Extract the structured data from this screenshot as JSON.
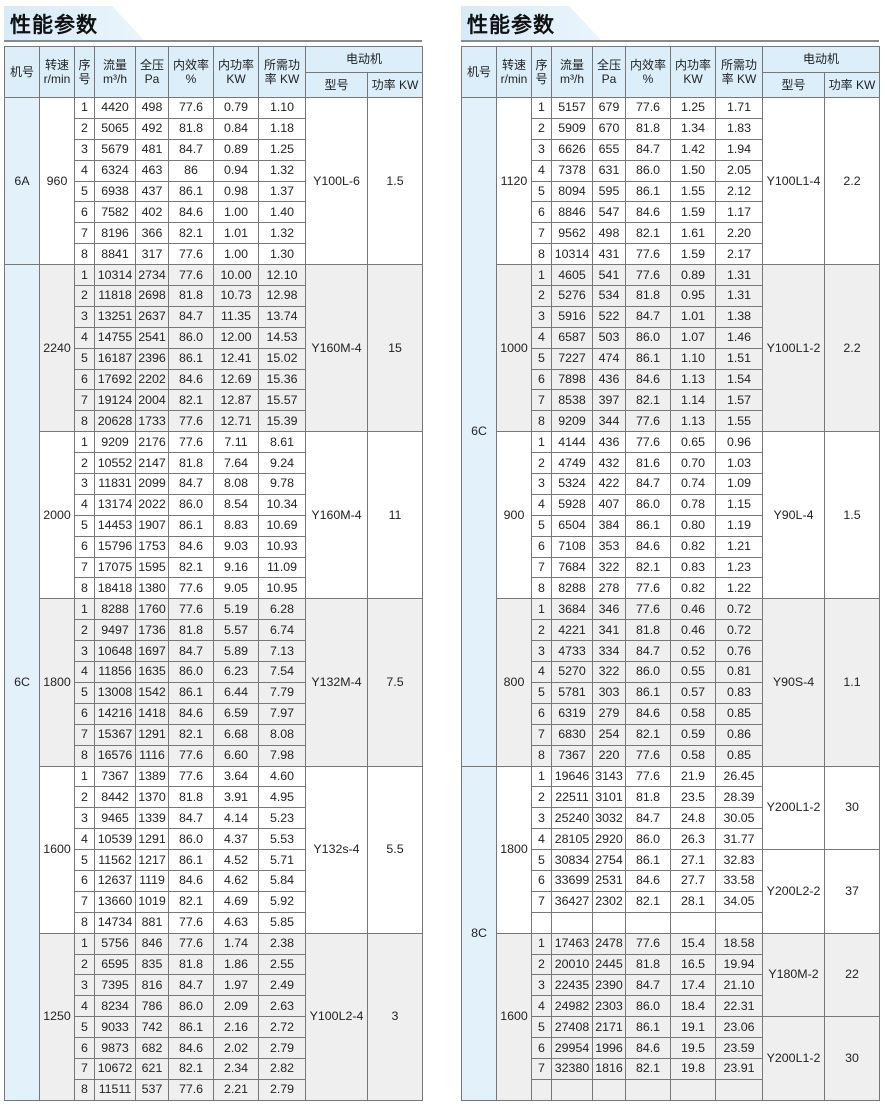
{
  "title": "性能参数",
  "headers": {
    "machine": "机号",
    "speed": "转速",
    "speed_unit": "r/min",
    "seq": "序号",
    "flow": "流量",
    "flow_unit": "m³/h",
    "pressure": "全压",
    "pressure_unit": "Pa",
    "eff": "内效率",
    "eff_unit": "%",
    "inpower": "内功率",
    "inpower_unit": "KW",
    "reqpower": "所需功",
    "reqpower_unit": "率 KW",
    "motor": "电动机",
    "motor_type": "型号",
    "motor_power": "功率 KW"
  },
  "colors": {
    "header_bg": "#dbeefa",
    "machine_col_bg": "#e3f1fb",
    "shade_bg": "#efefef"
  },
  "tables": [
    {
      "machines": [
        {
          "name": "6A",
          "groups": 1
        },
        {
          "name": "6C",
          "groups": 5
        }
      ],
      "groups": [
        {
          "speed": "960",
          "motors": [
            {
              "type": "Y100L-6",
              "power": "1.5",
              "span": 8
            }
          ],
          "rows": [
            [
              "1",
              "4420",
              "498",
              "77.6",
              "0.79",
              "1.10"
            ],
            [
              "2",
              "5065",
              "492",
              "81.8",
              "0.84",
              "1.18"
            ],
            [
              "3",
              "5679",
              "481",
              "84.7",
              "0.89",
              "1.25"
            ],
            [
              "4",
              "6324",
              "463",
              "86",
              "0.94",
              "1.32"
            ],
            [
              "5",
              "6938",
              "437",
              "86.1",
              "0.98",
              "1.37"
            ],
            [
              "6",
              "7582",
              "402",
              "84.6",
              "1.00",
              "1.40"
            ],
            [
              "7",
              "8196",
              "366",
              "82.1",
              "1.01",
              "1.32"
            ],
            [
              "8",
              "8841",
              "317",
              "77.6",
              "1.00",
              "1.30"
            ]
          ]
        },
        {
          "speed": "2240",
          "motors": [
            {
              "type": "Y160M-4",
              "power": "15",
              "span": 8
            }
          ],
          "rows": [
            [
              "1",
              "10314",
              "2734",
              "77.6",
              "10.00",
              "12.10"
            ],
            [
              "2",
              "11818",
              "2698",
              "81.8",
              "10.73",
              "12.98"
            ],
            [
              "3",
              "13251",
              "2637",
              "84.7",
              "11.35",
              "13.74"
            ],
            [
              "4",
              "14755",
              "2541",
              "86.0",
              "12.00",
              "14.53"
            ],
            [
              "5",
              "16187",
              "2396",
              "86.1",
              "12.41",
              "15.02"
            ],
            [
              "6",
              "17692",
              "2202",
              "84.6",
              "12.69",
              "15.36"
            ],
            [
              "7",
              "19124",
              "2004",
              "82.1",
              "12.87",
              "15.57"
            ],
            [
              "8",
              "20628",
              "1733",
              "77.6",
              "12.71",
              "15.39"
            ]
          ]
        },
        {
          "speed": "2000",
          "motors": [
            {
              "type": "Y160M-4",
              "power": "11",
              "span": 8
            }
          ],
          "rows": [
            [
              "1",
              "9209",
              "2176",
              "77.6",
              "7.11",
              "8.61"
            ],
            [
              "2",
              "10552",
              "2147",
              "81.8",
              "7.64",
              "9.24"
            ],
            [
              "3",
              "11831",
              "2099",
              "84.7",
              "8.08",
              "9.78"
            ],
            [
              "4",
              "13174",
              "2022",
              "86.0",
              "8.54",
              "10.34"
            ],
            [
              "5",
              "14453",
              "1907",
              "86.1",
              "8.83",
              "10.69"
            ],
            [
              "6",
              "15796",
              "1753",
              "84.6",
              "9.03",
              "10.93"
            ],
            [
              "7",
              "17075",
              "1595",
              "82.1",
              "9.16",
              "11.09"
            ],
            [
              "8",
              "18418",
              "1380",
              "77.6",
              "9.05",
              "10.95"
            ]
          ]
        },
        {
          "speed": "1800",
          "motors": [
            {
              "type": "Y132M-4",
              "power": "7.5",
              "span": 8
            }
          ],
          "rows": [
            [
              "1",
              "8288",
              "1760",
              "77.6",
              "5.19",
              "6.28"
            ],
            [
              "2",
              "9497",
              "1736",
              "81.8",
              "5.57",
              "6.74"
            ],
            [
              "3",
              "10648",
              "1697",
              "84.7",
              "5.89",
              "7.13"
            ],
            [
              "4",
              "11856",
              "1635",
              "86.0",
              "6.23",
              "7.54"
            ],
            [
              "5",
              "13008",
              "1542",
              "86.1",
              "6.44",
              "7.79"
            ],
            [
              "6",
              "14216",
              "1418",
              "84.6",
              "6.59",
              "7.97"
            ],
            [
              "7",
              "15367",
              "1291",
              "82.1",
              "6.68",
              "8.08"
            ],
            [
              "8",
              "16576",
              "1116",
              "77.6",
              "6.60",
              "7.98"
            ]
          ]
        },
        {
          "speed": "1600",
          "motors": [
            {
              "type": "Y132s-4",
              "power": "5.5",
              "span": 8
            }
          ],
          "rows": [
            [
              "1",
              "7367",
              "1389",
              "77.6",
              "3.64",
              "4.60"
            ],
            [
              "2",
              "8442",
              "1370",
              "81.8",
              "3.91",
              "4.95"
            ],
            [
              "3",
              "9465",
              "1339",
              "84.7",
              "4.14",
              "5.23"
            ],
            [
              "4",
              "10539",
              "1291",
              "86.0",
              "4.37",
              "5.53"
            ],
            [
              "5",
              "11562",
              "1217",
              "86.1",
              "4.52",
              "5.71"
            ],
            [
              "6",
              "12637",
              "1119",
              "84.6",
              "4.62",
              "5.84"
            ],
            [
              "7",
              "13660",
              "1019",
              "82.1",
              "4.69",
              "5.92"
            ],
            [
              "8",
              "14734",
              "881",
              "77.6",
              "4.63",
              "5.85"
            ]
          ]
        },
        {
          "speed": "1250",
          "motors": [
            {
              "type": "Y100L2-4",
              "power": "3",
              "span": 8
            }
          ],
          "rows": [
            [
              "1",
              "5756",
              "846",
              "77.6",
              "1.74",
              "2.38"
            ],
            [
              "2",
              "6595",
              "835",
              "81.8",
              "1.86",
              "2.55"
            ],
            [
              "3",
              "7395",
              "816",
              "84.7",
              "1.97",
              "2.49"
            ],
            [
              "4",
              "8234",
              "786",
              "86.0",
              "2.09",
              "2.63"
            ],
            [
              "5",
              "9033",
              "742",
              "86.1",
              "2.16",
              "2.72"
            ],
            [
              "6",
              "9873",
              "682",
              "84.6",
              "2.02",
              "2.79"
            ],
            [
              "7",
              "10672",
              "621",
              "82.1",
              "2.34",
              "2.82"
            ],
            [
              "8",
              "11511",
              "537",
              "77.6",
              "2.21",
              "2.79"
            ]
          ]
        }
      ]
    },
    {
      "machines": [
        {
          "name": "6C",
          "groups": 4
        },
        {
          "name": "8C",
          "groups": 2
        }
      ],
      "groups": [
        {
          "speed": "1120",
          "motors": [
            {
              "type": "Y100L1-4",
              "power": "2.2",
              "span": 8
            }
          ],
          "rows": [
            [
              "1",
              "5157",
              "679",
              "77.6",
              "1.25",
              "1.71"
            ],
            [
              "2",
              "5909",
              "670",
              "81.8",
              "1.34",
              "1.83"
            ],
            [
              "3",
              "6626",
              "655",
              "84.7",
              "1.42",
              "1.94"
            ],
            [
              "4",
              "7378",
              "631",
              "86.0",
              "1.50",
              "2.05"
            ],
            [
              "5",
              "8094",
              "595",
              "86.1",
              "1.55",
              "2.12"
            ],
            [
              "6",
              "8846",
              "547",
              "84.6",
              "1.59",
              "1.17"
            ],
            [
              "7",
              "9562",
              "498",
              "82.1",
              "1.61",
              "2.20"
            ],
            [
              "8",
              "10314",
              "431",
              "77.6",
              "1.59",
              "2.17"
            ]
          ]
        },
        {
          "speed": "1000",
          "motors": [
            {
              "type": "Y100L1-2",
              "power": "2.2",
              "span": 8
            }
          ],
          "rows": [
            [
              "1",
              "4605",
              "541",
              "77.6",
              "0.89",
              "1.31"
            ],
            [
              "2",
              "5276",
              "534",
              "81.8",
              "0.95",
              "1.31"
            ],
            [
              "3",
              "5916",
              "522",
              "84.7",
              "1.01",
              "1.38"
            ],
            [
              "4",
              "6587",
              "503",
              "86.0",
              "1.07",
              "1.46"
            ],
            [
              "5",
              "7227",
              "474",
              "86.1",
              "1.10",
              "1.51"
            ],
            [
              "6",
              "7898",
              "436",
              "84.6",
              "1.13",
              "1.54"
            ],
            [
              "7",
              "8538",
              "397",
              "82.1",
              "1.14",
              "1.57"
            ],
            [
              "8",
              "9209",
              "344",
              "77.6",
              "1.13",
              "1.55"
            ]
          ]
        },
        {
          "speed": "900",
          "motors": [
            {
              "type": "Y90L-4",
              "power": "1.5",
              "span": 8
            }
          ],
          "rows": [
            [
              "1",
              "4144",
              "436",
              "77.6",
              "0.65",
              "0.96"
            ],
            [
              "2",
              "4749",
              "432",
              "81.6",
              "0.70",
              "1.03"
            ],
            [
              "3",
              "5324",
              "422",
              "84.7",
              "0.74",
              "1.09"
            ],
            [
              "4",
              "5928",
              "407",
              "86.0",
              "0.78",
              "1.15"
            ],
            [
              "5",
              "6504",
              "384",
              "86.1",
              "0.80",
              "1.19"
            ],
            [
              "6",
              "7108",
              "353",
              "84.6",
              "0.82",
              "1.21"
            ],
            [
              "7",
              "7684",
              "322",
              "82.1",
              "0.83",
              "1.23"
            ],
            [
              "8",
              "8288",
              "278",
              "77.6",
              "0.82",
              "1.22"
            ]
          ]
        },
        {
          "speed": "800",
          "motors": [
            {
              "type": "Y90S-4",
              "power": "1.1",
              "span": 8
            }
          ],
          "rows": [
            [
              "1",
              "3684",
              "346",
              "77.6",
              "0.46",
              "0.72"
            ],
            [
              "2",
              "4221",
              "341",
              "81.8",
              "0.46",
              "0.72"
            ],
            [
              "3",
              "4733",
              "334",
              "84.7",
              "0.52",
              "0.76"
            ],
            [
              "4",
              "5270",
              "322",
              "86.0",
              "0.55",
              "0.81"
            ],
            [
              "5",
              "5781",
              "303",
              "86.1",
              "0.57",
              "0.83"
            ],
            [
              "6",
              "6319",
              "279",
              "84.6",
              "0.58",
              "0.85"
            ],
            [
              "7",
              "6830",
              "254",
              "82.1",
              "0.59",
              "0.86"
            ],
            [
              "8",
              "7367",
              "220",
              "77.6",
              "0.58",
              "0.85"
            ]
          ]
        },
        {
          "speed": "1800",
          "motors": [
            {
              "type": "Y200L1-2",
              "power": "30",
              "span": 4
            },
            {
              "type": "Y200L2-2",
              "power": "37",
              "span": 4
            }
          ],
          "rows": [
            [
              "1",
              "19646",
              "3143",
              "77.6",
              "21.9",
              "26.45"
            ],
            [
              "2",
              "22511",
              "3101",
              "81.8",
              "23.5",
              "28.39"
            ],
            [
              "3",
              "25240",
              "3032",
              "84.7",
              "24.8",
              "30.05"
            ],
            [
              "4",
              "28105",
              "2920",
              "86.0",
              "26.3",
              "31.77"
            ],
            [
              "5",
              "30834",
              "2754",
              "86.1",
              "27.1",
              "32.83"
            ],
            [
              "6",
              "33699",
              "2531",
              "84.6",
              "27.7",
              "33.58"
            ],
            [
              "7",
              "36427",
              "2302",
              "82.1",
              "28.1",
              "34.05"
            ],
            [
              "",
              "",
              "",
              "",
              "",
              ""
            ]
          ]
        },
        {
          "speed": "1600",
          "motors": [
            {
              "type": "Y180M-2",
              "power": "22",
              "span": 4
            },
            {
              "type": "Y200L1-2",
              "power": "30",
              "span": 4
            }
          ],
          "rows": [
            [
              "1",
              "17463",
              "2478",
              "77.6",
              "15.4",
              "18.58"
            ],
            [
              "2",
              "20010",
              "2445",
              "81.8",
              "16.5",
              "19.94"
            ],
            [
              "3",
              "22435",
              "2390",
              "84.7",
              "17.4",
              "21.10"
            ],
            [
              "4",
              "24982",
              "2303",
              "86.0",
              "18.4",
              "22.31"
            ],
            [
              "5",
              "27408",
              "2171",
              "86.1",
              "19.1",
              "23.06"
            ],
            [
              "6",
              "29954",
              "1996",
              "84.6",
              "19.5",
              "23.59"
            ],
            [
              "7",
              "32380",
              "1816",
              "82.1",
              "19.8",
              "23.91"
            ],
            [
              "",
              "",
              "",
              "",
              "",
              ""
            ]
          ]
        }
      ]
    }
  ]
}
